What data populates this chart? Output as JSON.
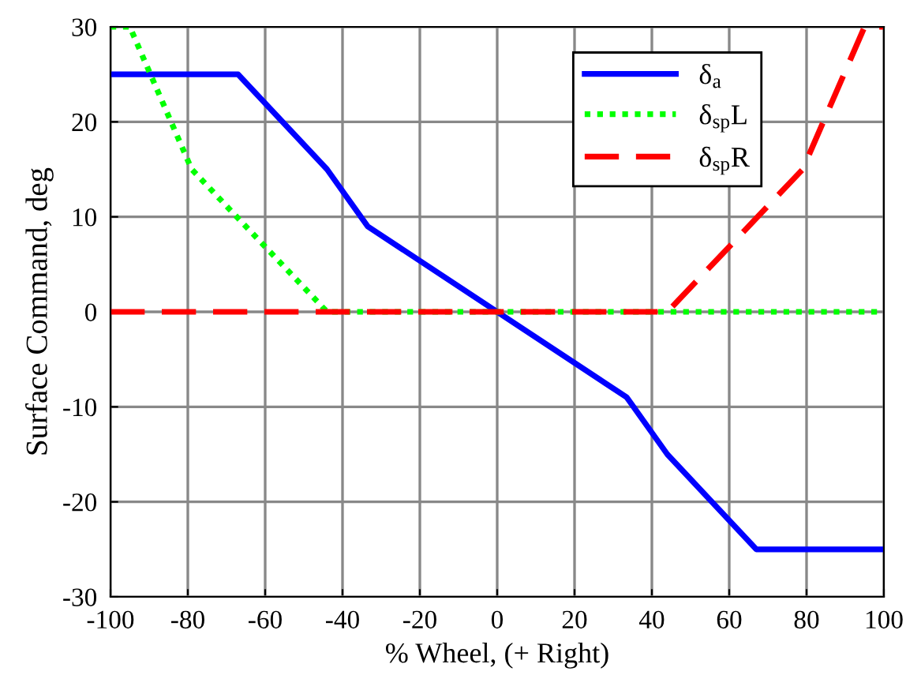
{
  "chart_data": {
    "type": "line",
    "xlabel": "% Wheel, (+ Right)",
    "ylabel": "Surface Command, deg",
    "xlim": [
      -100,
      100
    ],
    "xticks": [
      -100,
      -80,
      -60,
      -40,
      -20,
      0,
      20,
      40,
      60,
      80,
      100
    ],
    "ylim": [
      -30,
      30
    ],
    "yticks": [
      -30,
      -20,
      -10,
      0,
      10,
      20,
      30
    ],
    "grid": true,
    "legend": "top right",
    "series": [
      {
        "name": "δ$_{a}$",
        "color": "#0000ff",
        "line_style": "solid",
        "x": [
          -100,
          -67,
          -44,
          -33.5,
          0,
          33.5,
          44,
          67,
          100
        ],
        "values": [
          25,
          25,
          15,
          9,
          0,
          -9,
          -15,
          -25,
          -25
        ]
      },
      {
        "name": "δ$_{sp}$L",
        "color": "#00ff00",
        "line_style": "dotted",
        "x": [
          -100,
          -95,
          -79,
          -44,
          100
        ],
        "values": [
          30,
          30,
          15,
          0,
          0
        ]
      },
      {
        "name": "δ$_{sp}$R",
        "color": "#ff0000",
        "line_style": "dashed",
        "x": [
          -100,
          44,
          79,
          95,
          100
        ],
        "values": [
          0,
          0,
          15,
          30,
          30
        ]
      }
    ]
  }
}
